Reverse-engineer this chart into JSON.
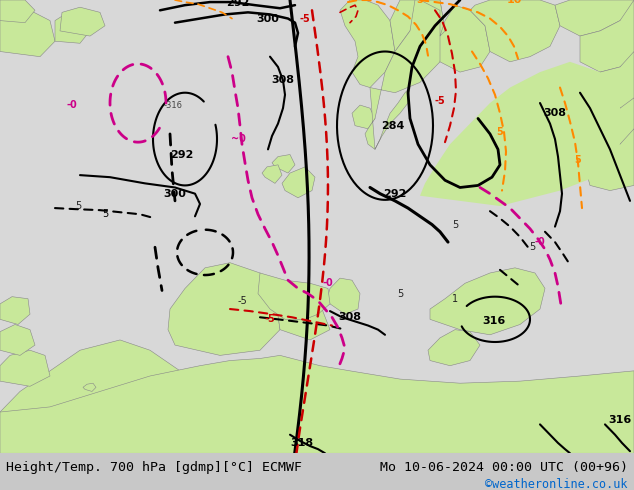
{
  "title_left": "Height/Temp. 700 hPa [gdmp][°C] ECMWF",
  "title_right": "Mo 10-06-2024 00:00 UTC (00+96)",
  "watermark": "©weatheronline.co.uk",
  "watermark_color": "#0066cc",
  "land_color": "#c8e89a",
  "sea_color": "#d8d8d8",
  "coast_color": "#888888",
  "bottom_bar_color": "#c8c8c8",
  "title_fontsize": 9.5,
  "watermark_fontsize": 8.5,
  "fig_width": 6.34,
  "fig_height": 4.9,
  "dpi": 100
}
